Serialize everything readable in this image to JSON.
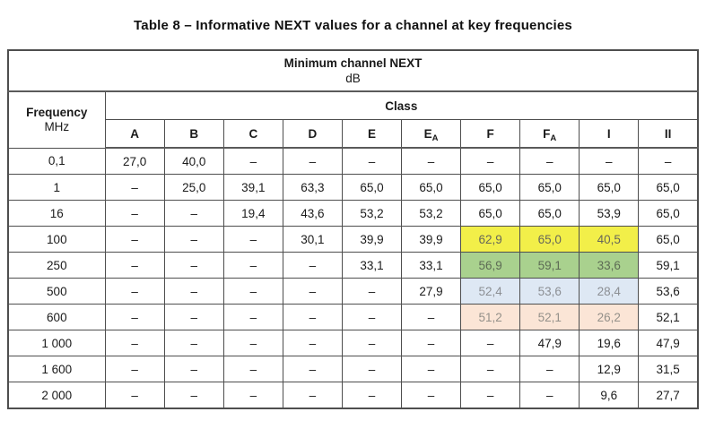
{
  "title": "Table 8 – Informative NEXT values for a channel at key frequencies",
  "highlight_colors": {
    "yellow": "#f2ef49",
    "green": "#a9d18e",
    "blue": "#dee8f4",
    "peach": "#fbe5d6"
  },
  "table": {
    "header": {
      "title": "Minimum channel NEXT",
      "unit": "dB",
      "freq_label": "Frequency",
      "freq_unit": "MHz",
      "class_label": "Class",
      "columns": [
        {
          "label": "A",
          "sub": ""
        },
        {
          "label": "B",
          "sub": ""
        },
        {
          "label": "C",
          "sub": ""
        },
        {
          "label": "D",
          "sub": ""
        },
        {
          "label": "E",
          "sub": ""
        },
        {
          "label": "E",
          "sub": "A"
        },
        {
          "label": "F",
          "sub": ""
        },
        {
          "label": "F",
          "sub": "A"
        },
        {
          "label": "I",
          "sub": ""
        },
        {
          "label": "II",
          "sub": ""
        }
      ]
    },
    "rows": [
      {
        "freq": "0,1",
        "values": [
          {
            "t": "27,0"
          },
          {
            "t": "40,0"
          },
          {
            "t": "–"
          },
          {
            "t": "–"
          },
          {
            "t": "–"
          },
          {
            "t": "–"
          },
          {
            "t": "–"
          },
          {
            "t": "–"
          },
          {
            "t": "–"
          },
          {
            "t": "–"
          }
        ]
      },
      {
        "freq": "1",
        "values": [
          {
            "t": "–"
          },
          {
            "t": "25,0"
          },
          {
            "t": "39,1"
          },
          {
            "t": "63,3"
          },
          {
            "t": "65,0"
          },
          {
            "t": "65,0"
          },
          {
            "t": "65,0"
          },
          {
            "t": "65,0"
          },
          {
            "t": "65,0"
          },
          {
            "t": "65,0"
          }
        ]
      },
      {
        "freq": "16",
        "values": [
          {
            "t": "–"
          },
          {
            "t": "–"
          },
          {
            "t": "19,4"
          },
          {
            "t": "43,6"
          },
          {
            "t": "53,2"
          },
          {
            "t": "53,2"
          },
          {
            "t": "65,0"
          },
          {
            "t": "65,0"
          },
          {
            "t": "53,9"
          },
          {
            "t": "65,0"
          }
        ]
      },
      {
        "freq": "100",
        "values": [
          {
            "t": "–"
          },
          {
            "t": "–"
          },
          {
            "t": "–"
          },
          {
            "t": "30,1"
          },
          {
            "t": "39,9"
          },
          {
            "t": "39,9"
          },
          {
            "t": "62,9",
            "h": "yellow"
          },
          {
            "t": "65,0",
            "h": "yellow"
          },
          {
            "t": "40,5",
            "h": "yellow"
          },
          {
            "t": "65,0"
          }
        ]
      },
      {
        "freq": "250",
        "values": [
          {
            "t": "–"
          },
          {
            "t": "–"
          },
          {
            "t": "–"
          },
          {
            "t": "–"
          },
          {
            "t": "33,1"
          },
          {
            "t": "33,1"
          },
          {
            "t": "56,9",
            "h": "green"
          },
          {
            "t": "59,1",
            "h": "green"
          },
          {
            "t": "33,6",
            "h": "green"
          },
          {
            "t": "59,1"
          }
        ]
      },
      {
        "freq": "500",
        "values": [
          {
            "t": "–"
          },
          {
            "t": "–"
          },
          {
            "t": "–"
          },
          {
            "t": "–"
          },
          {
            "t": "–"
          },
          {
            "t": "27,9"
          },
          {
            "t": "52,4",
            "h": "blue"
          },
          {
            "t": "53,6",
            "h": "blue"
          },
          {
            "t": "28,4",
            "h": "blue"
          },
          {
            "t": "53,6"
          }
        ]
      },
      {
        "freq": "600",
        "values": [
          {
            "t": "–"
          },
          {
            "t": "–"
          },
          {
            "t": "–"
          },
          {
            "t": "–"
          },
          {
            "t": "–"
          },
          {
            "t": "–"
          },
          {
            "t": "51,2",
            "h": "peach"
          },
          {
            "t": "52,1",
            "h": "peach"
          },
          {
            "t": "26,2",
            "h": "peach"
          },
          {
            "t": "52,1"
          }
        ]
      },
      {
        "freq": "1 000",
        "values": [
          {
            "t": "–"
          },
          {
            "t": "–"
          },
          {
            "t": "–"
          },
          {
            "t": "–"
          },
          {
            "t": "–"
          },
          {
            "t": "–"
          },
          {
            "t": "–"
          },
          {
            "t": "47,9"
          },
          {
            "t": "19,6"
          },
          {
            "t": "47,9"
          }
        ]
      },
      {
        "freq": "1 600",
        "values": [
          {
            "t": "–"
          },
          {
            "t": "–"
          },
          {
            "t": "–"
          },
          {
            "t": "–"
          },
          {
            "t": "–"
          },
          {
            "t": "–"
          },
          {
            "t": "–"
          },
          {
            "t": "–"
          },
          {
            "t": "12,9"
          },
          {
            "t": "31,5"
          }
        ]
      },
      {
        "freq": "2 000",
        "values": [
          {
            "t": "–"
          },
          {
            "t": "–"
          },
          {
            "t": "–"
          },
          {
            "t": "–"
          },
          {
            "t": "–"
          },
          {
            "t": "–"
          },
          {
            "t": "–"
          },
          {
            "t": "–"
          },
          {
            "t": "9,6"
          },
          {
            "t": "27,7"
          }
        ]
      }
    ]
  }
}
